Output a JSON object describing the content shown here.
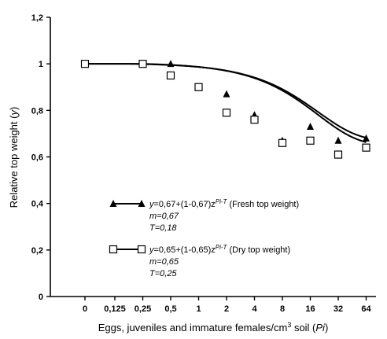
{
  "chart_data": {
    "type": "scatter",
    "xlabel": {
      "prefix": "Eggs, juveniles and immature females/cm",
      "sup": "3",
      "middle": " soil (",
      "var": "Pi",
      "suffix": ")"
    },
    "ylabel": {
      "prefix": "Relative top weight (",
      "var": "y",
      "suffix": ")"
    },
    "x_tick_labels": [
      "0",
      "0,125",
      "0,25",
      "0,5",
      "1",
      "2",
      "4",
      "8",
      "16",
      "32",
      "64"
    ],
    "y_tick_labels": [
      "0",
      "0,2",
      "0,4",
      "0,6",
      "0,8",
      "1",
      "1,2"
    ],
    "y_ticks": [
      0,
      0.2,
      0.4,
      0.6,
      0.8,
      1.0,
      1.2
    ],
    "ylim": [
      0,
      1.2
    ],
    "x_scale": "categorical (0, then log2 of Pi)",
    "grid": false,
    "legend_position": "lower-left",
    "series": [
      {
        "name": "Fresh top weight",
        "marker": "filled-triangle",
        "x": [
          "0",
          "0,25",
          "0,5",
          "1",
          "2",
          "4",
          "8",
          "16",
          "32",
          "64"
        ],
        "y": [
          1.0,
          1.0,
          1.0,
          0.9,
          0.87,
          0.78,
          0.67,
          0.73,
          0.67,
          0.68
        ],
        "fit": {
          "m": 0.67,
          "T": 0.18,
          "z": 0.95,
          "xmin": 0,
          "xmax": 64
        },
        "legend": {
          "eq_var": "y",
          "eq_mid": "=0,67+(1-0,67)z",
          "eq_exp": "Pi-T",
          "eq_label": " (Fresh top weight)",
          "m_line": "m=0,67",
          "t_line": "T=0,18"
        }
      },
      {
        "name": "Dry top weight",
        "marker": "open-square",
        "x": [
          "0",
          "0,25",
          "0,5",
          "1",
          "2",
          "4",
          "8",
          "16",
          "32",
          "64"
        ],
        "y": [
          1.0,
          1.0,
          0.95,
          0.9,
          0.79,
          0.76,
          0.66,
          0.67,
          0.61,
          0.64
        ],
        "fit": {
          "m": 0.65,
          "T": 0.25,
          "z": 0.95,
          "xmin": 0,
          "xmax": 64
        },
        "legend": {
          "eq_var": "y",
          "eq_mid": "=0,65+(1-0,65)z",
          "eq_exp": "Pi-T",
          "eq_label": " (Dry top weight)",
          "m_line": "m=0,65",
          "t_line": "T=0,25"
        }
      }
    ]
  }
}
